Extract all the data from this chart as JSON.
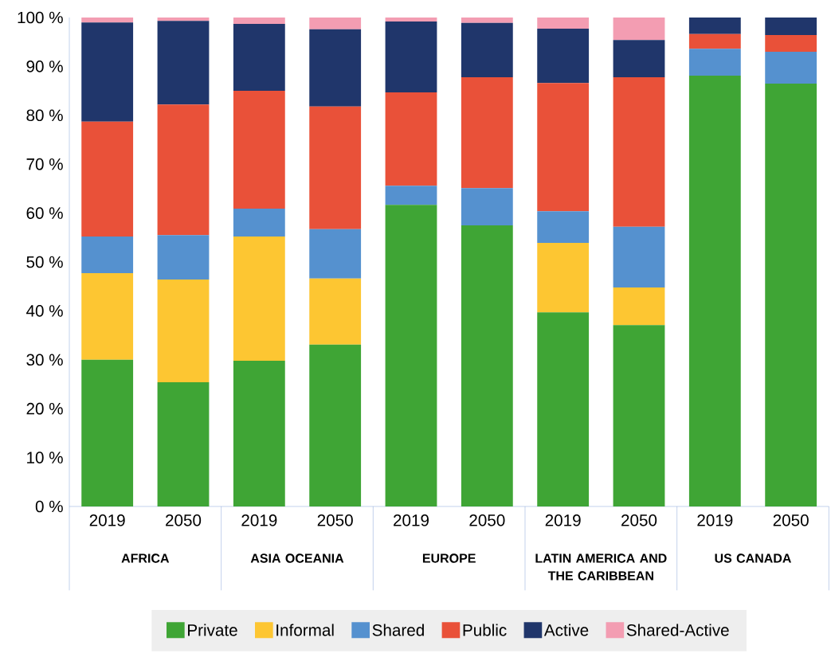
{
  "chart_data": {
    "type": "bar",
    "stacked": true,
    "categories": [
      "2019",
      "2050",
      "2019",
      "2050",
      "2019",
      "2050",
      "2019",
      "2050",
      "2019",
      "2050"
    ],
    "series": [
      {
        "name": "Private",
        "color": "#3fa535",
        "values": [
          30.0,
          25.4,
          29.8,
          33.1,
          61.7,
          57.5,
          39.7,
          37.1,
          88.1,
          86.5
        ]
      },
      {
        "name": "Informal",
        "color": "#fdc632",
        "values": [
          17.7,
          21.0,
          25.4,
          13.5,
          0,
          0,
          14.2,
          7.7,
          0,
          0
        ]
      },
      {
        "name": "Shared",
        "color": "#5591cf",
        "values": [
          7.5,
          9.1,
          5.7,
          10.1,
          3.9,
          7.6,
          6.5,
          12.4,
          5.5,
          6.5
        ]
      },
      {
        "name": "Public",
        "color": "#e95139",
        "values": [
          23.5,
          26.7,
          24.1,
          25.1,
          19.1,
          22.7,
          26.2,
          30.6,
          3.0,
          3.4
        ]
      },
      {
        "name": "Active",
        "color": "#20366b",
        "values": [
          20.3,
          17.1,
          13.7,
          15.8,
          14.5,
          11.1,
          11.1,
          7.6,
          3.4,
          3.6
        ]
      },
      {
        "name": "Shared-Active",
        "color": "#f39db2",
        "values": [
          1.0,
          0.7,
          1.3,
          2.4,
          0.8,
          1.1,
          2.3,
          4.6,
          0,
          0
        ]
      }
    ],
    "ylim": [
      0,
      100
    ],
    "yticks": [
      {
        "value": 0,
        "label": "0 %"
      },
      {
        "value": 10,
        "label": "10 %"
      },
      {
        "value": 20,
        "label": "20 %"
      },
      {
        "value": 30,
        "label": "30 %"
      },
      {
        "value": 40,
        "label": "40 %"
      },
      {
        "value": 50,
        "label": "50 %"
      },
      {
        "value": 60,
        "label": "60 %"
      },
      {
        "value": 70,
        "label": "70 %"
      },
      {
        "value": 80,
        "label": "80 %"
      },
      {
        "value": 90,
        "label": "90 %"
      },
      {
        "value": 100,
        "label": "100 %"
      }
    ],
    "annotations": [
      "AFRICA",
      "ASIA OCEANIA",
      "EUROPE",
      "LATIN AMERICA AND THE CARIBBEAN",
      "US CANADA"
    ],
    "legend": "bottom"
  }
}
